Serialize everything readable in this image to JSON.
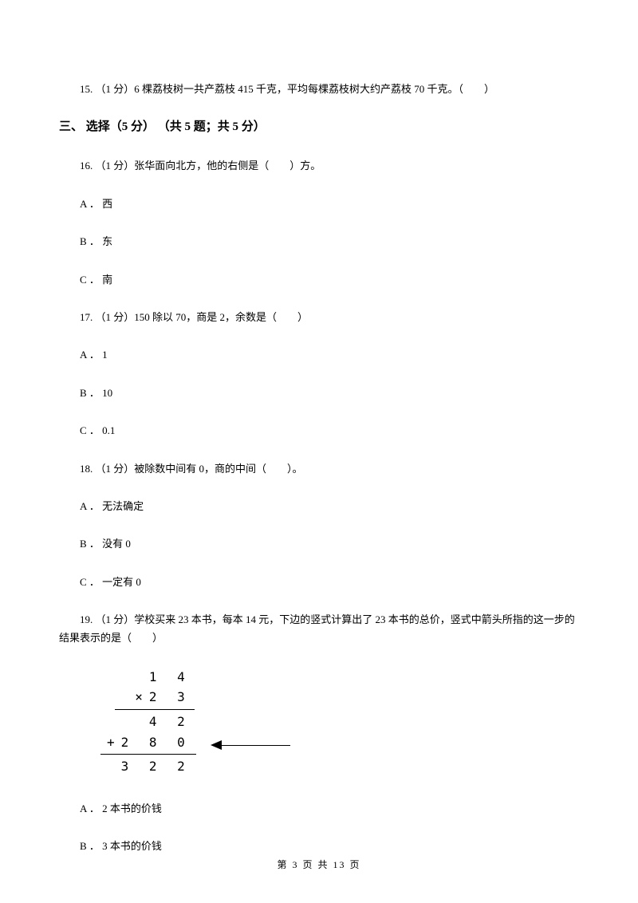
{
  "q15": {
    "text": "15. （1 分）6 棵荔枝树一共产荔枝 415 千克，平均每棵荔枝树大约产荔枝 70 千克。（　　）"
  },
  "section3": {
    "header": "三、 选择（5 分） （共 5 题；共 5 分）"
  },
  "q16": {
    "text": "16. （1 分）张华面向北方，他的右侧是（　　）方。",
    "optA": "A ． 西",
    "optB": "B ． 东",
    "optC": "C ． 南"
  },
  "q17": {
    "text": "17. （1 分）150 除以 70，商是 2，余数是（　　）",
    "optA": "A ． 1",
    "optB": "B ． 10",
    "optC": "C ． 0.1"
  },
  "q18": {
    "text": "18. （1 分）被除数中间有 0，商的中间（　　）。",
    "optA": "A ． 无法确定",
    "optB": "B ． 没有 0",
    "optC": "C ． 一定有 0"
  },
  "q19": {
    "text": "19. （1 分）学校买来 23 本书，每本 14 元，下边的竖式计算出了 23 本书的总价，竖式中箭头所指的这一步的结果表示的是（　　）",
    "calc": {
      "row1": "   1 4",
      "row2": "  ×2 3",
      "row3": "   4 2",
      "row4": "+2 8 0",
      "row5": " 3 2 2"
    },
    "optA": "A ． 2 本书的价钱",
    "optB": "B ． 3 本书的价钱"
  },
  "footer": {
    "text": "第 3 页 共 13 页"
  }
}
